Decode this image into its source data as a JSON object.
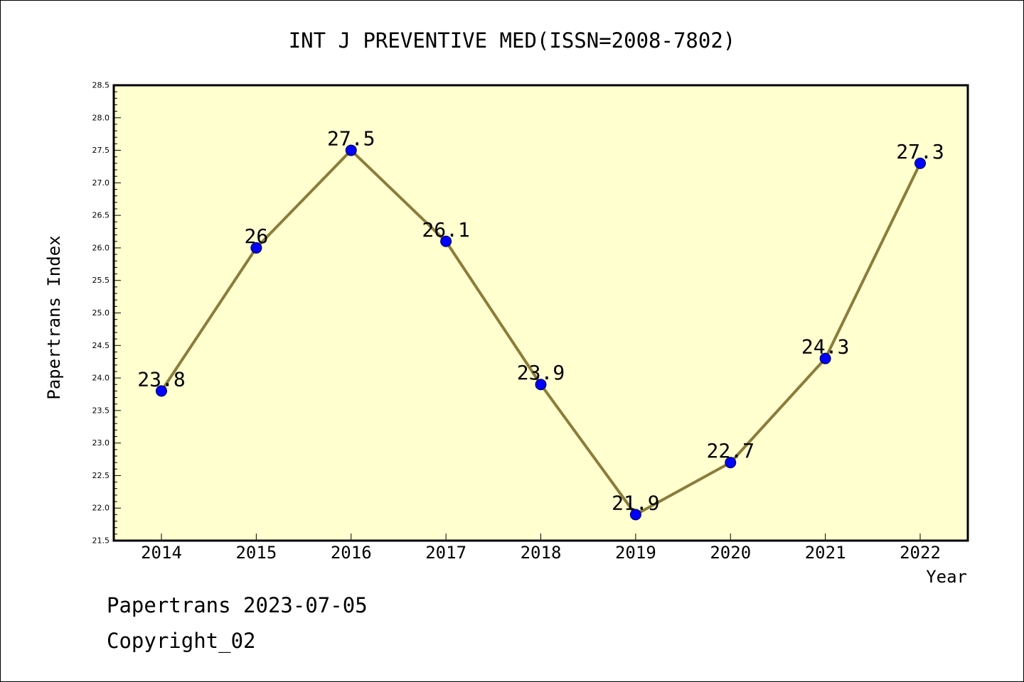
{
  "chart_data": {
    "type": "line",
    "title": "INT J PREVENTIVE MED(ISSN=2008-7802)",
    "xlabel": "Year",
    "ylabel": "Papertrans Index",
    "categories": [
      "2014",
      "2015",
      "2016",
      "2017",
      "2018",
      "2019",
      "2020",
      "2021",
      "2022"
    ],
    "series": [
      {
        "values": [
          23.8,
          26,
          27.5,
          26.1,
          23.9,
          21.9,
          22.7,
          24.3,
          27.3
        ],
        "data_labels": [
          "23.8",
          "26",
          "27.5",
          "26.1",
          "23.9",
          "21.9",
          "22.7",
          "24.3",
          "27.3"
        ]
      }
    ],
    "ylim": [
      21.5,
      28.5
    ],
    "yticks": [
      "21.5",
      "22.0",
      "22.5",
      "23.0",
      "23.5",
      "24.0",
      "24.5",
      "25.0",
      "25.5",
      "26.0",
      "26.5",
      "27.0",
      "27.5",
      "28.0",
      "28.5"
    ],
    "grid": false,
    "colors": {
      "plot_background": "#ffffd0",
      "line": "#8b7d3a",
      "marker": "#0000ff"
    }
  },
  "footer": {
    "line1": "Papertrans 2023-07-05",
    "line2": "Copyright_02"
  }
}
